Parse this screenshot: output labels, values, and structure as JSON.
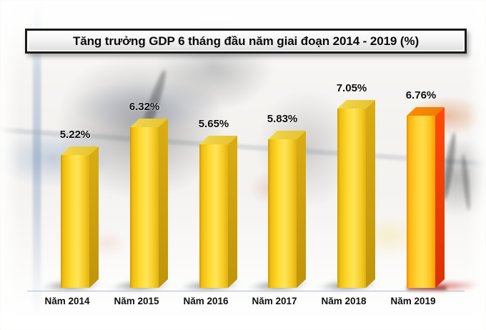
{
  "chart_data": {
    "type": "bar",
    "title": "Tăng trưởng GDP 6 tháng đầu năm giai đoạn 2014 - 2019 (%)",
    "categories": [
      "Năm 2014",
      "Năm 2015",
      "Năm 2016",
      "Năm 2017",
      "Năm 2018",
      "Năm 2019"
    ],
    "values": [
      5.22,
      6.32,
      5.65,
      5.83,
      7.05,
      6.76
    ],
    "value_labels": [
      "5.22%",
      "6.32%",
      "5.65%",
      "5.83%",
      "7.05%",
      "6.76%"
    ],
    "unit": "%",
    "xlabel": "",
    "ylabel": "",
    "ylim": [
      0,
      7.5
    ],
    "grid": false,
    "legend": false,
    "highlight_index": 5,
    "colors": {
      "axis_line": "#A8BCD2",
      "bar_yellow": {
        "front": [
          "#CE9B07",
          "#F0BE10",
          "#FFDB31",
          "#FFE45A",
          "#F6CD26",
          "#E2B113"
        ],
        "top": [
          "#F3D74F",
          "#E4C22E"
        ],
        "side": [
          "#DAAD13",
          "#BF9409"
        ],
        "shadow": "rgba(45,45,52,0.60)"
      },
      "bar_highlight": {
        "front": [
          "#E88E05",
          "#FFB60F",
          "#FFD334",
          "#FFDB4D",
          "#FFC51D",
          "#FF9D06"
        ],
        "top": [
          "#FB8D02",
          "#F07A02"
        ],
        "side": [
          "#FF4D08",
          "#DB3007"
        ],
        "shadow": "rgba(195,25,10,0.60)",
        "shadow_dark": "rgba(120,10,5,0.55)"
      }
    }
  }
}
